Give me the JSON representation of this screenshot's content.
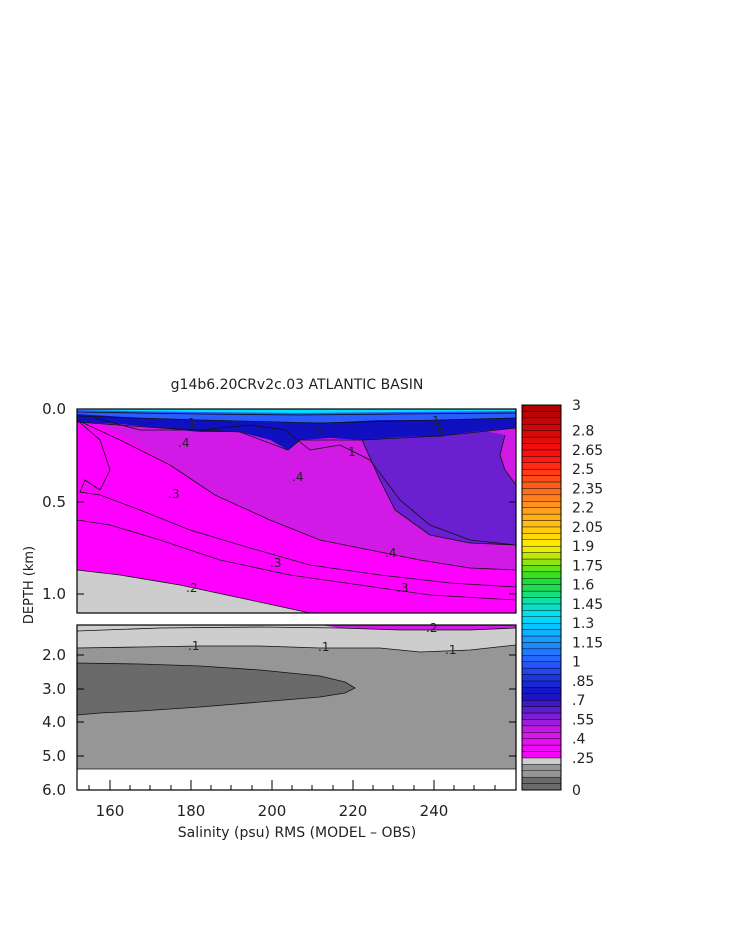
{
  "chart_data": {
    "type": "heatmap",
    "title": "g14b6.20CRv2c.03 ATLANTIC BASIN",
    "xlabel": "Salinity (psu) RMS (MODEL – OBS)",
    "ylabel": "DEPTH (km)",
    "x_ticks": [
      "160",
      "180",
      "200",
      "220",
      "240"
    ],
    "upper_panel": {
      "y_ticks": [
        "0.0",
        "0.5",
        "1.0"
      ],
      "contour_labels": [
        "1",
        ".5",
        ".4",
        ".4",
        ".3",
        ".3",
        ".2",
        ".4",
        ".3",
        "1",
        ".5",
        "1"
      ]
    },
    "lower_panel": {
      "y_ticks": [
        "2.0",
        "3.0",
        "4.0",
        "5.0",
        "6.0"
      ],
      "contour_labels": [
        ".1",
        ".1",
        ".1",
        ".2"
      ]
    },
    "colorbar": {
      "tick_labels": [
        "3",
        "2.8",
        "2.65",
        "2.5",
        "2.35",
        "2.2",
        "2.05",
        "1.9",
        "1.75",
        "1.6",
        "1.45",
        "1.3",
        "1.15",
        "1",
        ".85",
        ".7",
        ".55",
        ".4",
        ".25",
        "0"
      ],
      "levels": [
        0,
        0.05,
        0.1,
        0.15,
        0.2,
        0.25,
        0.3,
        0.35,
        0.4,
        0.45,
        0.5,
        0.55,
        0.6,
        0.65,
        0.7,
        0.75,
        0.8,
        0.85,
        0.9,
        0.95,
        1.0,
        1.05,
        1.1,
        1.15,
        1.2,
        1.25,
        1.3,
        1.35,
        1.4,
        1.45,
        1.5,
        1.55,
        1.6,
        1.65,
        1.7,
        1.75,
        1.8,
        1.85,
        1.9,
        1.95,
        2.0,
        2.05,
        2.1,
        2.15,
        2.2,
        2.25,
        2.3,
        2.35,
        2.4,
        2.45,
        2.5,
        2.55,
        2.6,
        2.65,
        2.7,
        2.75,
        2.8,
        2.85,
        2.9,
        2.95,
        3.0
      ],
      "colors": {
        "gray_dark": "#6a6a6a",
        "gray_mid": "#969696",
        "gray_light": "#cdcdcd",
        "magenta_bright": "#ff00ff",
        "magenta": "#d21ae6",
        "purple": "#6a1fd0",
        "blue_dark": "#1010c0",
        "blue": "#2a5cff",
        "cyan": "#00e0ff",
        "green": "#22dd22",
        "yellow": "#ffee00",
        "orange": "#ff9a20",
        "red": "#ff1010",
        "red_dark": "#aa0000"
      }
    }
  }
}
